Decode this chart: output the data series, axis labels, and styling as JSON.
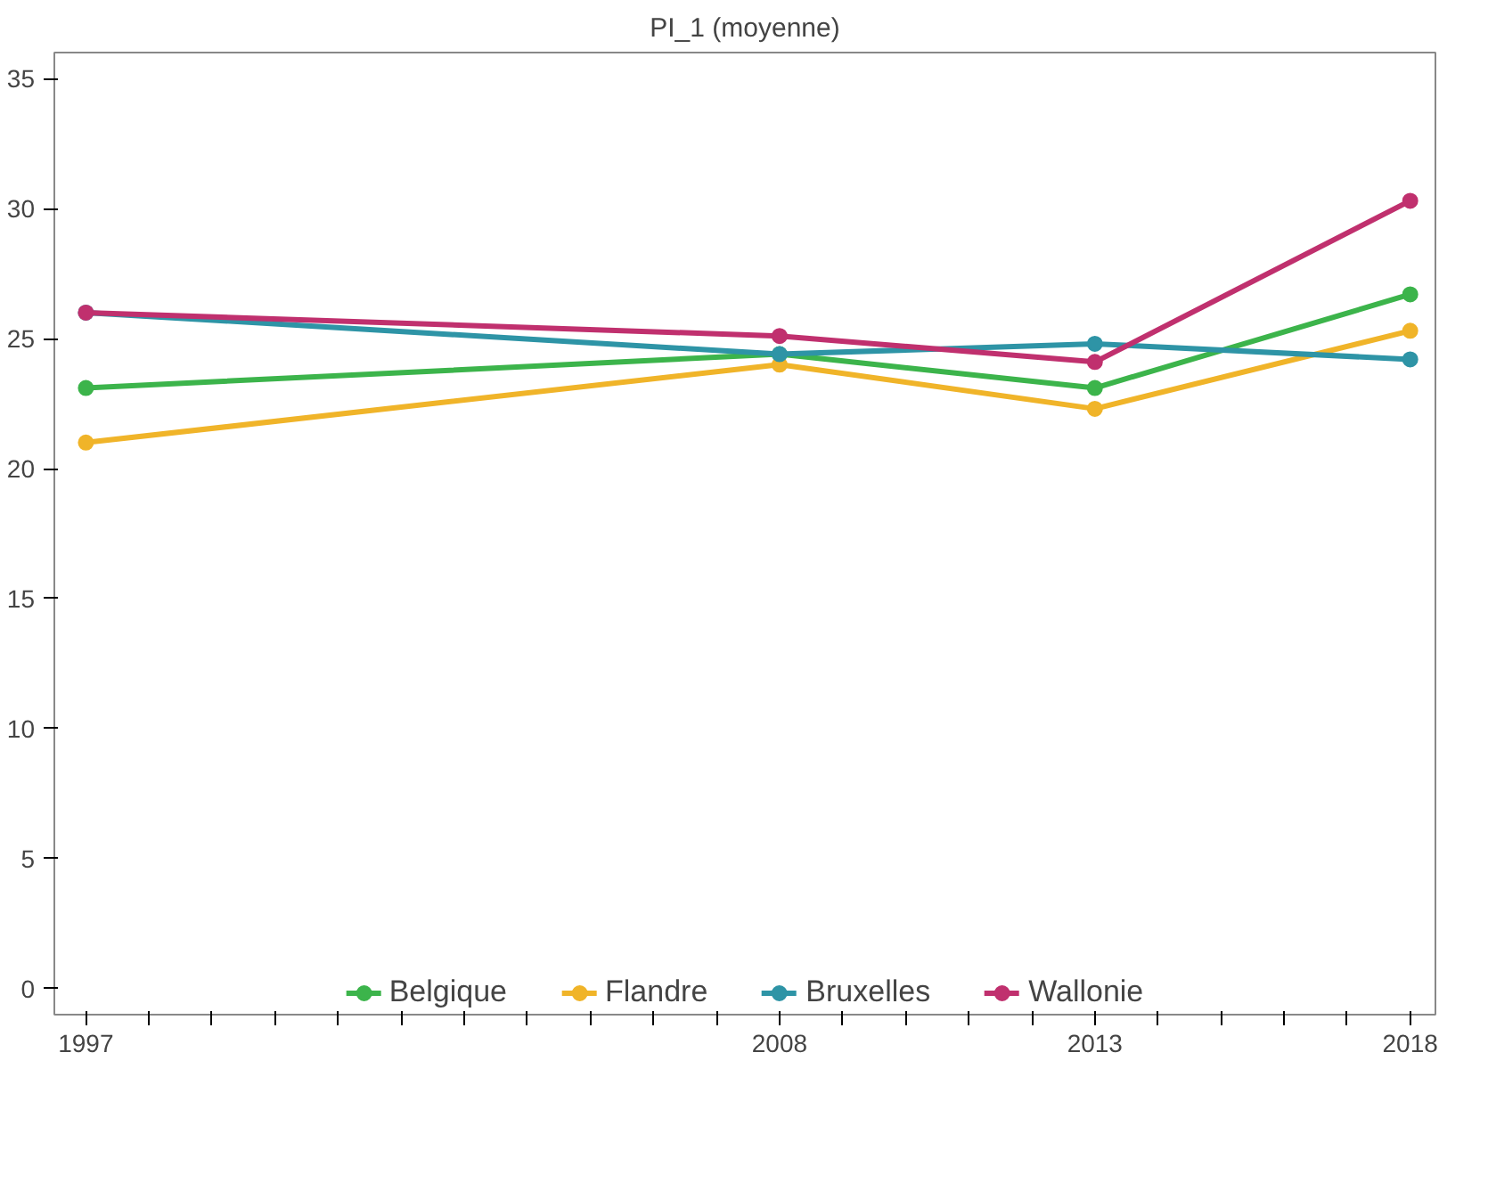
{
  "chart_data": {
    "type": "line",
    "title": "PI_1 (moyenne)",
    "x": [
      1997,
      2008,
      2013,
      2018
    ],
    "series": [
      {
        "name": "Belgique",
        "color": "#3cb44b",
        "values": [
          23.1,
          24.4,
          23.1,
          26.7
        ]
      },
      {
        "name": "Flandre",
        "color": "#f0b429",
        "values": [
          21.0,
          24.0,
          22.3,
          25.3
        ]
      },
      {
        "name": "Bruxelles",
        "color": "#2e94a6",
        "values": [
          26.0,
          24.4,
          24.8,
          24.2
        ]
      },
      {
        "name": "Wallonie",
        "color": "#c0306e",
        "values": [
          26.0,
          25.1,
          24.1,
          30.3
        ]
      }
    ],
    "xlim": [
      1996.5,
      2018.4
    ],
    "ylim": [
      -1,
      36
    ],
    "xticks": [
      1997,
      {
        "value": 1998,
        "label": null
      },
      {
        "value": 1999,
        "label": null
      },
      {
        "value": 2000,
        "label": null
      },
      {
        "value": 2001,
        "label": null
      },
      {
        "value": 2002,
        "label": null
      },
      {
        "value": 2003,
        "label": null
      },
      {
        "value": 2004,
        "label": null
      },
      {
        "value": 2005,
        "label": null
      },
      {
        "value": 2006,
        "label": null
      },
      {
        "value": 2007,
        "label": null
      },
      2008,
      {
        "value": 2009,
        "label": null
      },
      {
        "value": 2010,
        "label": null
      },
      {
        "value": 2011,
        "label": null
      },
      {
        "value": 2012,
        "label": null
      },
      2013,
      {
        "value": 2014,
        "label": null
      },
      {
        "value": 2015,
        "label": null
      },
      {
        "value": 2016,
        "label": null
      },
      {
        "value": 2017,
        "label": null
      },
      2018
    ],
    "yticks": [
      0,
      5,
      10,
      15,
      20,
      25,
      30,
      35
    ],
    "grid": false,
    "legend": "bottom",
    "marker": "circle",
    "line_style": "solid"
  }
}
